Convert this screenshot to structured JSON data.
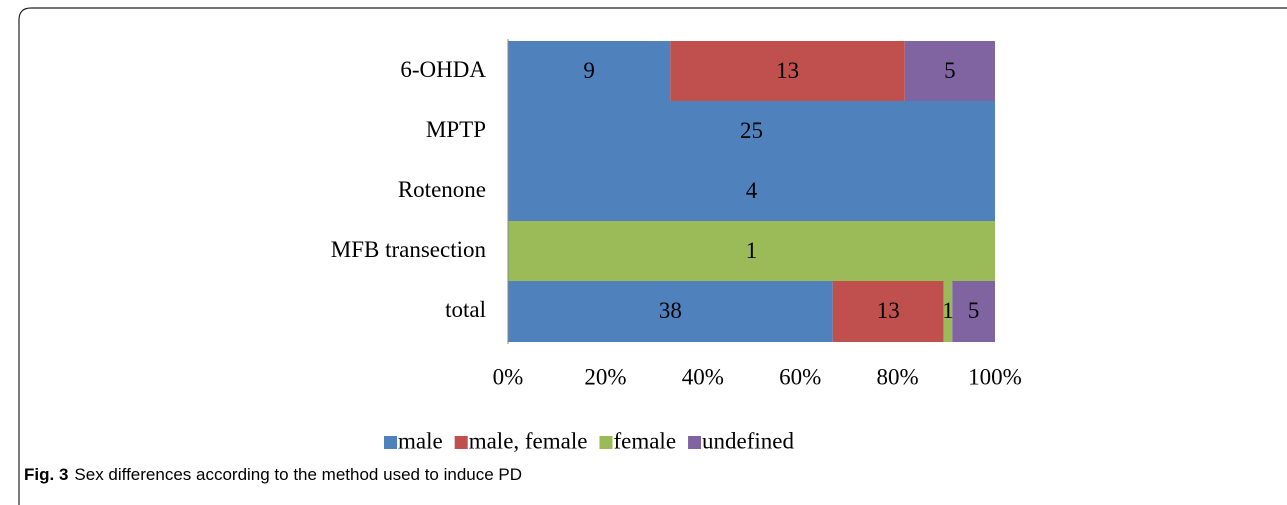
{
  "chart_data": {
    "type": "bar",
    "orientation": "horizontal",
    "stacking": "percent",
    "categories": [
      "6-OHDA",
      "MPTP",
      "Rotenone",
      "MFB transection",
      "total"
    ],
    "series": [
      {
        "name": "male",
        "color": "#4f81bd",
        "values": [
          9,
          25,
          4,
          0,
          38
        ]
      },
      {
        "name": "male, female",
        "color": "#c0504d",
        "values": [
          13,
          0,
          0,
          0,
          13
        ]
      },
      {
        "name": "female",
        "color": "#9bbb59",
        "values": [
          0,
          0,
          0,
          1,
          1
        ]
      },
      {
        "name": "undefined",
        "color": "#8064a2",
        "values": [
          5,
          0,
          0,
          0,
          5
        ]
      }
    ],
    "xlim": [
      0,
      100
    ],
    "xticks": [
      {
        "value": 0,
        "label": "0%"
      },
      {
        "value": 20,
        "label": "20%"
      },
      {
        "value": 40,
        "label": "40%"
      },
      {
        "value": 60,
        "label": "60%"
      },
      {
        "value": 80,
        "label": "80%"
      },
      {
        "value": 100,
        "label": "100%"
      }
    ],
    "legend": "bottom"
  },
  "caption_label": "Fig. 3",
  "caption": "Sex differences according to the method used to induce PD"
}
